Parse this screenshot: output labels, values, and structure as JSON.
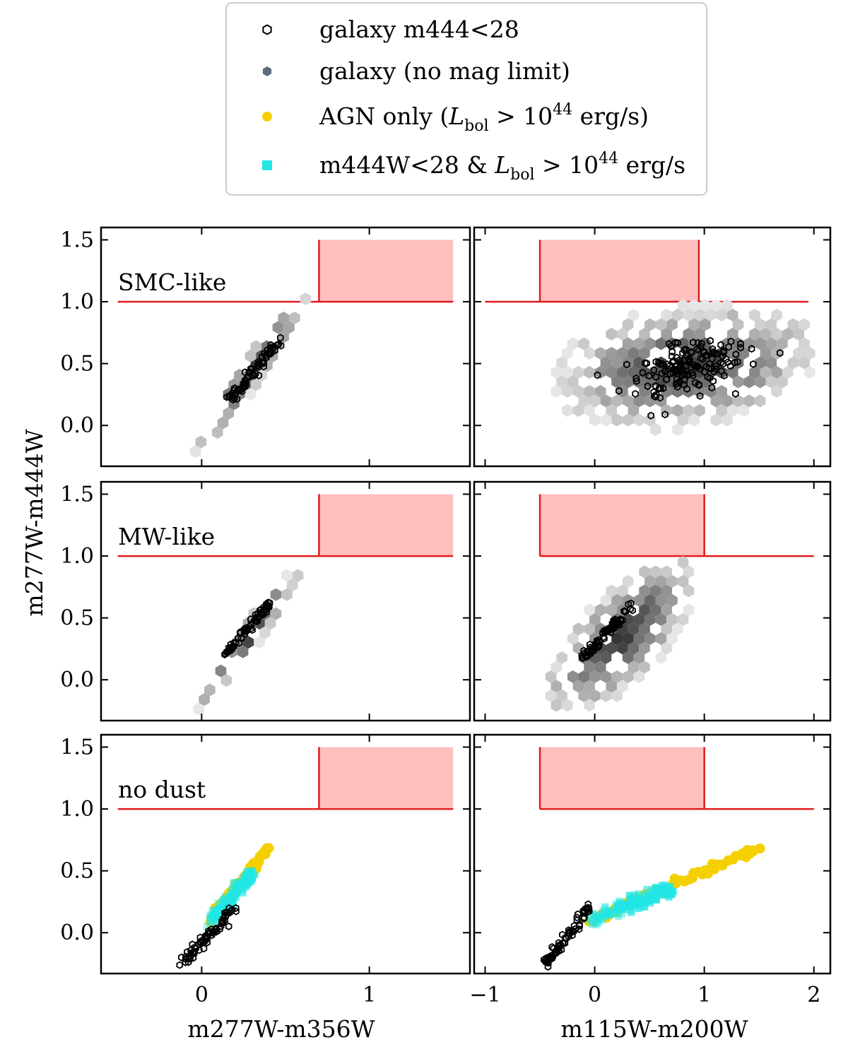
{
  "legend": {
    "items": [
      {
        "marker": "open-hexagon",
        "color": "#000000",
        "text": "galaxy m444<28"
      },
      {
        "marker": "filled-hexagon",
        "color": "#5f6b7a",
        "text": "galaxy (no mag limit)"
      },
      {
        "marker": "filled-circle",
        "color": "#f5d000",
        "text_pre": "AGN only (",
        "text_L": "L",
        "text_sub": "bol",
        "text_mid": " > 10",
        "text_sup": "44",
        "text_post": " erg/s)"
      },
      {
        "marker": "filled-square",
        "color": "#22e6e6",
        "text_pre": "m444W<28 & ",
        "text_L": "L",
        "text_sub": "bol",
        "text_mid": " > 10",
        "text_sup": "44",
        "text_post": " erg/s"
      }
    ]
  },
  "axes": {
    "ylabel": "m277W-m444W",
    "xlabel_left": "m277W-m356W",
    "xlabel_right": "m115W-m200W",
    "yticks": [
      "1.5",
      "1.0",
      "0.5",
      "0.0"
    ],
    "xticks_left": [
      "0",
      "1"
    ],
    "xticks_right": [
      "−1",
      "0",
      "1",
      "2"
    ]
  },
  "rows": [
    {
      "label": "SMC-like"
    },
    {
      "label": "MW-like"
    },
    {
      "label": "no dust"
    }
  ],
  "colors": {
    "selection_fill": "#ffbfbf",
    "selection_line": "#e31a1c",
    "agn": "#f5d000",
    "mixed": "#22e6e6"
  },
  "chart_data": [
    {
      "type": "scatter",
      "panel": "SMC-like, left",
      "xlabel": "",
      "ylabel": "m277W-m444W",
      "xlim": [
        -0.6,
        1.6
      ],
      "ylim": [
        -0.33,
        1.6
      ],
      "selection": {
        "y_floor": 1.0,
        "x_from": -0.5,
        "x_to": 1.5,
        "box_x": [
          0.7,
          1.5
        ],
        "box_y": [
          1.0,
          1.5
        ]
      },
      "galaxy_no_limit": {
        "x_range": [
          -0.07,
          0.65
        ],
        "y_range": [
          -0.25,
          1.1
        ]
      },
      "galaxy_m444_lt_28": {
        "x_range": [
          0.15,
          0.47
        ],
        "y_range": [
          0.18,
          0.7
        ]
      }
    },
    {
      "type": "scatter",
      "panel": "SMC-like, right",
      "xlabel": "",
      "ylabel": "",
      "xlim": [
        -1.1,
        2.15
      ],
      "ylim": [
        -0.33,
        1.6
      ],
      "selection": {
        "y_floor": 1.0,
        "x_from": -1.0,
        "x_to": 1.95,
        "box_x": [
          -0.5,
          0.95
        ],
        "box_y": [
          1.0,
          1.5
        ]
      },
      "galaxy_no_limit": {
        "x_range": [
          -0.35,
          2.0
        ],
        "y_range": [
          -0.25,
          1.2
        ]
      },
      "galaxy_m444_lt_28": {
        "x_range": [
          -0.05,
          1.65
        ],
        "y_range": [
          0.2,
          0.7
        ]
      }
    },
    {
      "type": "scatter",
      "panel": "MW-like, left",
      "xlabel": "",
      "ylabel": "m277W-m444W",
      "xlim": [
        -0.6,
        1.6
      ],
      "ylim": [
        -0.33,
        1.6
      ],
      "selection": {
        "y_floor": 1.0,
        "x_from": -0.5,
        "x_to": 1.5,
        "box_x": [
          0.7,
          1.5
        ],
        "box_y": [
          1.0,
          1.5
        ]
      },
      "galaxy_no_limit": {
        "x_range": [
          -0.05,
          0.6
        ],
        "y_range": [
          -0.25,
          0.92
        ]
      },
      "galaxy_m444_lt_28": {
        "x_range": [
          0.14,
          0.4
        ],
        "y_range": [
          0.2,
          0.6
        ]
      }
    },
    {
      "type": "scatter",
      "panel": "MW-like, right",
      "xlabel": "",
      "ylabel": "",
      "xlim": [
        -1.1,
        2.15
      ],
      "ylim": [
        -0.33,
        1.6
      ],
      "selection": {
        "y_floor": 1.0,
        "x_from": -0.5,
        "x_to": 2.0,
        "box_x": [
          -0.5,
          1.0
        ],
        "box_y": [
          1.0,
          1.5
        ]
      },
      "galaxy_no_limit": {
        "x_range": [
          -0.4,
          0.9
        ],
        "y_range": [
          -0.25,
          0.95
        ]
      },
      "galaxy_m444_lt_28": {
        "x_range": [
          -0.1,
          0.35
        ],
        "y_range": [
          0.18,
          0.62
        ]
      }
    },
    {
      "type": "scatter",
      "panel": "no dust, left",
      "xlabel": "m277W-m356W",
      "ylabel": "m277W-m444W",
      "xlim": [
        -0.6,
        1.6
      ],
      "ylim": [
        -0.33,
        1.6
      ],
      "xticks": [
        0,
        1
      ],
      "selection": {
        "y_floor": 1.0,
        "x_from": -0.5,
        "x_to": 1.5,
        "box_x": [
          0.7,
          1.5
        ],
        "box_y": [
          1.0,
          1.5
        ]
      },
      "galaxy_m444_lt_28": {
        "x_range": [
          -0.12,
          0.2
        ],
        "y_range": [
          -0.25,
          0.2
        ]
      },
      "agn_track": {
        "start": [
          0.05,
          0.1
        ],
        "end": [
          0.4,
          0.68
        ]
      },
      "mixed_track": {
        "start": [
          0.05,
          0.1
        ],
        "end": [
          0.3,
          0.47
        ]
      }
    },
    {
      "type": "scatter",
      "panel": "no dust, right",
      "xlabel": "m115W-m200W",
      "ylabel": "",
      "xlim": [
        -1.1,
        2.15
      ],
      "ylim": [
        -0.33,
        1.6
      ],
      "xticks": [
        -1,
        0,
        1,
        2
      ],
      "selection": {
        "y_floor": 1.0,
        "x_from": -0.5,
        "x_to": 2.0,
        "box_x": [
          -0.5,
          1.0
        ],
        "box_y": [
          1.0,
          1.5
        ]
      },
      "galaxy_m444_lt_28": {
        "x_range": [
          -0.45,
          -0.05
        ],
        "y_range": [
          -0.25,
          0.2
        ]
      },
      "agn_track": {
        "start": [
          -0.05,
          0.1
        ],
        "end": [
          1.5,
          0.68
        ]
      },
      "mixed_track": {
        "start": [
          -0.05,
          0.1
        ],
        "end": [
          0.7,
          0.35
        ]
      }
    }
  ]
}
